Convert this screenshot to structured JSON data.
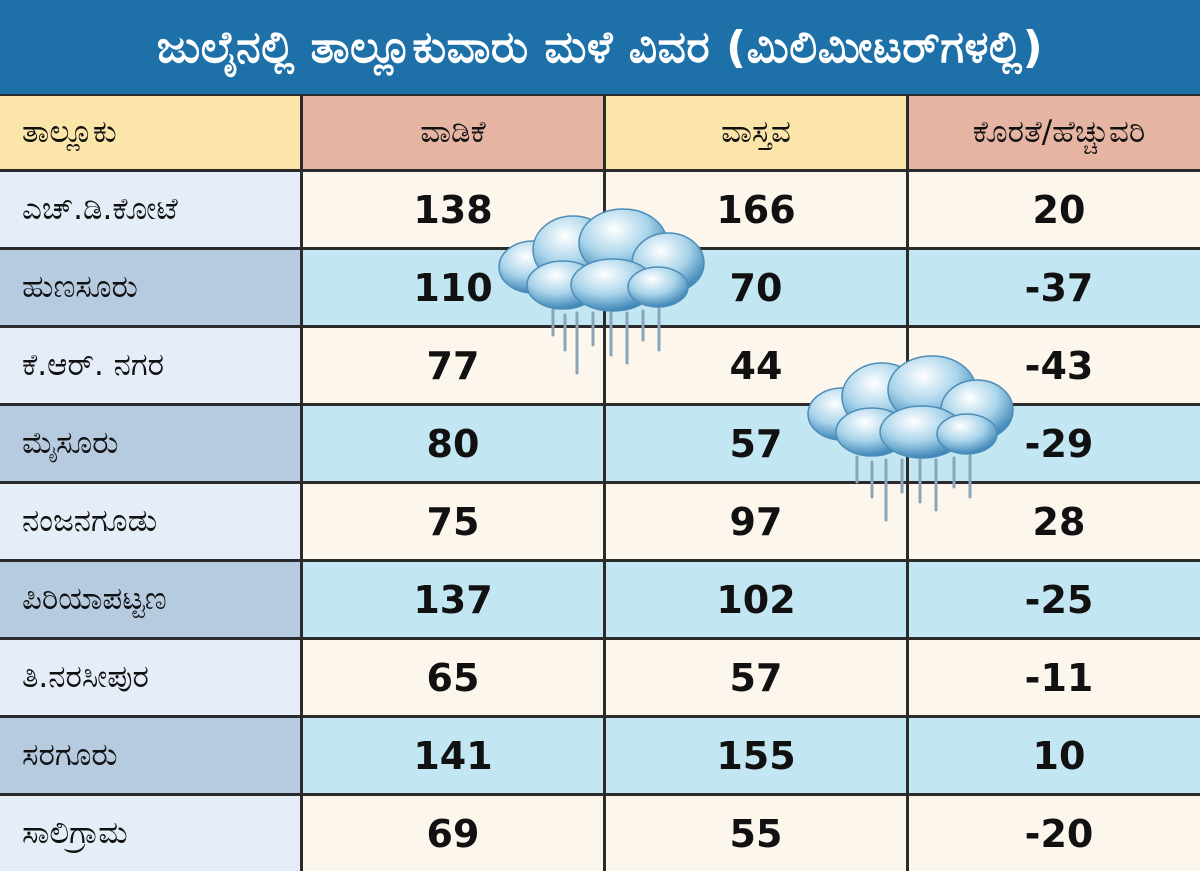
{
  "title": "ಜುಲೈನಲ್ಲಿ ತಾಲ್ಲೂಕುವಾರು ಮಳೆ ವಿವರ (ಮಿಲಿಮೀಟರ್‌ಗಳಲ್ಲಿ)",
  "icons": {
    "cloud_1": "rain-cloud-icon",
    "cloud_2": "rain-cloud-icon"
  },
  "colors": {
    "title_bg": "#1d70a8",
    "header_peach": "#e6b4a2",
    "header_yellow": "#fce5a8",
    "row_light": "#fdf6ec",
    "row_blue": "#c3e7f2"
  },
  "chart_data": {
    "type": "table",
    "columns": [
      "ತಾಲ್ಲೂಕು",
      "ವಾಡಿಕೆ",
      "ವಾಸ್ತವ",
      "ಕೊರತೆ/ಹೆಚ್ಚುವರಿ"
    ],
    "rows": [
      [
        "ಎಚ್.ಡಿ.ಕೋಟೆ",
        "138",
        "166",
        "20"
      ],
      [
        "ಹುಣಸೂರು",
        "110",
        "70",
        "-37"
      ],
      [
        "ಕೆ.ಆರ್. ನಗರ",
        "77",
        "44",
        "-43"
      ],
      [
        "ಮೈಸೂರು",
        "80",
        "57",
        "-29"
      ],
      [
        "ನಂಜನಗೂಡು",
        "75",
        "97",
        "28"
      ],
      [
        "ಪಿರಿಯಾಪಟ್ಟಣ",
        "137",
        "102",
        "-25"
      ],
      [
        "ತಿ.ನರಸೀಪುರ",
        "65",
        "57",
        "-11"
      ],
      [
        "ಸರಗೂರು",
        "141",
        "155",
        "10"
      ],
      [
        "ಸಾಲಿಗ್ರಾಮ",
        "69",
        "55",
        "-20"
      ]
    ]
  }
}
